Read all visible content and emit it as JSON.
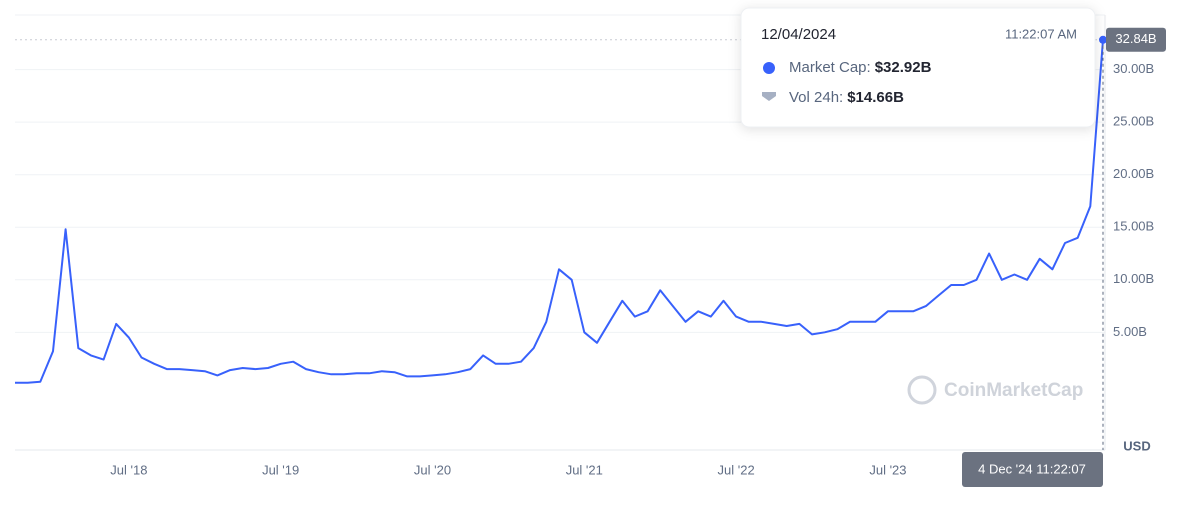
{
  "chart_data": {
    "type": "line",
    "watermark": "CoinMarketCap",
    "unit_label": "USD",
    "categories": [
      null,
      null,
      null,
      null,
      null,
      null,
      null,
      null,
      null,
      "Jul '18",
      null,
      null,
      null,
      null,
      null,
      null,
      null,
      null,
      null,
      null,
      null,
      "Jul '19",
      null,
      null,
      null,
      null,
      null,
      null,
      null,
      null,
      null,
      null,
      null,
      "Jul '20",
      null,
      null,
      null,
      null,
      null,
      null,
      null,
      null,
      null,
      null,
      null,
      "Jul '21",
      null,
      null,
      null,
      null,
      null,
      null,
      null,
      null,
      null,
      null,
      null,
      "Jul '22",
      null,
      null,
      null,
      null,
      null,
      null,
      null,
      null,
      null,
      null,
      null,
      "Jul '23",
      null,
      null,
      null,
      null,
      null,
      null,
      null,
      null,
      null,
      null,
      null,
      null,
      null,
      null,
      null,
      null,
      null
    ],
    "series": [
      {
        "color": "#3861fb",
        "values": [
          0.2,
          0.2,
          0.3,
          3.2,
          14.8,
          3.5,
          2.8,
          2.4,
          5.8,
          4.5,
          2.6,
          2.0,
          1.5,
          1.5,
          1.4,
          1.3,
          0.9,
          1.4,
          1.6,
          1.5,
          1.6,
          2.0,
          2.2,
          1.5,
          1.2,
          1.0,
          1.0,
          1.1,
          1.1,
          1.3,
          1.2,
          0.8,
          0.8,
          0.9,
          1.0,
          1.2,
          1.5,
          2.8,
          2.0,
          2.0,
          2.2,
          3.5,
          6.0,
          11.0,
          10.0,
          5.0,
          4.0,
          6.0,
          8.0,
          6.5,
          7.0,
          9.0,
          7.5,
          6.0,
          7.0,
          6.5,
          8.0,
          6.5,
          6.0,
          6.0,
          5.8,
          5.6,
          5.8,
          4.8,
          5.0,
          5.3,
          6.0,
          6.0,
          6.0,
          7.0,
          7.0,
          7.0,
          7.5,
          8.5,
          9.5,
          9.5,
          10.0,
          12.5,
          10.0,
          10.5,
          10.0,
          12.0,
          11.0,
          13.5,
          14.0,
          17.0,
          32.84
        ]
      }
    ],
    "last_value": {
      "value": 32.84,
      "label": "32.84B"
    },
    "ylim": [
      -6.2,
      35.2
    ],
    "yticks": [
      {
        "value": 5,
        "label": "5.00B"
      },
      {
        "value": 10,
        "label": "10.00B"
      },
      {
        "value": 15,
        "label": "15.00B"
      },
      {
        "value": 20,
        "label": "20.00B"
      },
      {
        "value": 25,
        "label": "25.00B"
      },
      {
        "value": 30,
        "label": "30.00B"
      }
    ],
    "grid": true,
    "crosshair_label": "4 Dec '24 11:22:07",
    "tooltip": {
      "date": "12/04/2024",
      "time": "11:22:07 AM",
      "items": [
        {
          "label": "Market Cap:",
          "value": "$32.92B"
        },
        {
          "label": "Vol 24h:",
          "value": "$14.66B"
        }
      ]
    }
  }
}
